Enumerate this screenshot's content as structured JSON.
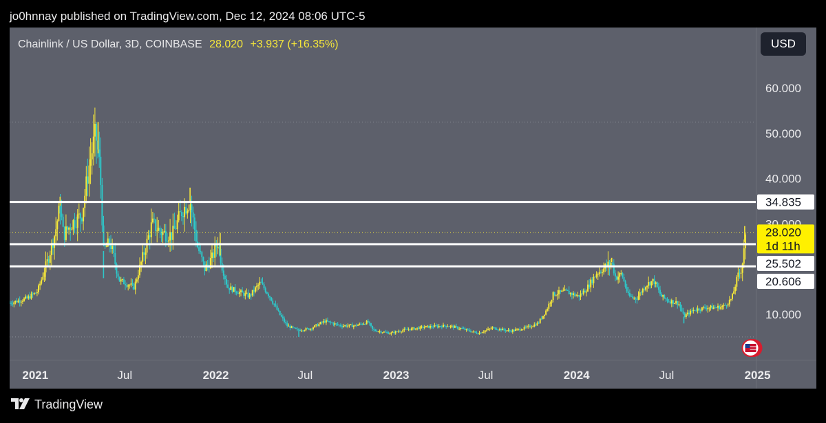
{
  "header": {
    "published": "jo0hnnay published on TradingView.com, Dec 12, 2024 08:06 UTC-5"
  },
  "legend": {
    "symbol": "Chainlink / US Dollar, 3D, COINBASE",
    "price": "28.020",
    "change": "+3.937 (+16.35%)"
  },
  "currency_button": "USD",
  "footer": {
    "brand": "TradingView"
  },
  "colors": {
    "background": "#5d606b",
    "up": "#f5e63a",
    "down": "#2ec7c9",
    "lines": "#ffffff",
    "price_label": "#fff000"
  },
  "chart_data": {
    "type": "candlestick",
    "title": "Chainlink / US Dollar, 3D, COINBASE",
    "x_tick_labels": [
      "2021",
      "Jul",
      "2022",
      "Jul",
      "2023",
      "Jul",
      "2024",
      "Jul",
      "2025"
    ],
    "y_tick_labels": [
      "10.000",
      "40.000",
      "50.000",
      "60.000"
    ],
    "ylim": [
      2,
      66
    ],
    "x_range": [
      "2020-11-10",
      "2025-04-30"
    ],
    "horizontal_levels": [
      34.835,
      25.502,
      20.606
    ],
    "current_price": {
      "value": 28.02,
      "label": "28.020",
      "countdown": "1d 11h"
    },
    "level_labels": [
      "34.835",
      "25.502",
      "20.606"
    ],
    "hidden_tick": "30.000",
    "close_path": [
      [
        "2020-11-10",
        12.5
      ],
      [
        "2020-12-15",
        13.5
      ],
      [
        "2021-01-05",
        15.0
      ],
      [
        "2021-01-25",
        21.5
      ],
      [
        "2021-02-10",
        28.0
      ],
      [
        "2021-02-20",
        34.0
      ],
      [
        "2021-02-27",
        27.5
      ],
      [
        "2021-03-15",
        30.0
      ],
      [
        "2021-04-05",
        32.0
      ],
      [
        "2021-04-20",
        43.0
      ],
      [
        "2021-05-03",
        50.0
      ],
      [
        "2021-05-12",
        42.0
      ],
      [
        "2021-05-19",
        24.0
      ],
      [
        "2021-06-01",
        26.0
      ],
      [
        "2021-06-20",
        17.5
      ],
      [
        "2021-07-20",
        16.0
      ],
      [
        "2021-08-10",
        24.0
      ],
      [
        "2021-08-25",
        30.0
      ],
      [
        "2021-09-15",
        28.0
      ],
      [
        "2021-10-05",
        27.5
      ],
      [
        "2021-10-25",
        33.0
      ],
      [
        "2021-11-10",
        35.0
      ],
      [
        "2021-11-25",
        25.0
      ],
      [
        "2021-12-10",
        20.0
      ],
      [
        "2021-12-25",
        22.5
      ],
      [
        "2022-01-05",
        26.0
      ],
      [
        "2022-01-15",
        20.0
      ],
      [
        "2022-01-25",
        16.0
      ],
      [
        "2022-02-15",
        15.0
      ],
      [
        "2022-03-10",
        14.0
      ],
      [
        "2022-04-01",
        17.0
      ],
      [
        "2022-04-20",
        14.0
      ],
      [
        "2022-05-10",
        10.0
      ],
      [
        "2022-05-25",
        7.5
      ],
      [
        "2022-06-15",
        6.5
      ],
      [
        "2022-07-10",
        6.8
      ],
      [
        "2022-08-10",
        8.5
      ],
      [
        "2022-09-10",
        7.5
      ],
      [
        "2022-10-10",
        7.5
      ],
      [
        "2022-11-05",
        8.3
      ],
      [
        "2022-11-15",
        6.5
      ],
      [
        "2022-12-20",
        5.8
      ],
      [
        "2023-01-15",
        6.5
      ],
      [
        "2023-03-01",
        7.2
      ],
      [
        "2023-04-15",
        7.5
      ],
      [
        "2023-05-15",
        6.8
      ],
      [
        "2023-06-15",
        5.8
      ],
      [
        "2023-07-15",
        7.0
      ],
      [
        "2023-08-20",
        6.3
      ],
      [
        "2023-09-20",
        7.0
      ],
      [
        "2023-10-15",
        8.0
      ],
      [
        "2023-11-01",
        11.0
      ],
      [
        "2023-11-15",
        14.5
      ],
      [
        "2023-12-10",
        15.0
      ],
      [
        "2024-01-05",
        14.0
      ],
      [
        "2024-01-20",
        15.5
      ],
      [
        "2024-02-10",
        19.0
      ],
      [
        "2024-03-01",
        20.5
      ],
      [
        "2024-03-12",
        21.5
      ],
      [
        "2024-03-20",
        18.0
      ],
      [
        "2024-04-01",
        19.0
      ],
      [
        "2024-04-15",
        14.0
      ],
      [
        "2024-05-01",
        13.5
      ],
      [
        "2024-05-20",
        16.5
      ],
      [
        "2024-06-05",
        17.5
      ],
      [
        "2024-06-20",
        14.0
      ],
      [
        "2024-07-05",
        13.0
      ],
      [
        "2024-07-25",
        12.5
      ],
      [
        "2024-08-05",
        9.5
      ],
      [
        "2024-08-25",
        11.0
      ],
      [
        "2024-09-20",
        11.5
      ],
      [
        "2024-10-10",
        11.5
      ],
      [
        "2024-10-25",
        11.8
      ],
      [
        "2024-11-10",
        13.5
      ],
      [
        "2024-11-22",
        18.5
      ],
      [
        "2024-11-30",
        20.0
      ],
      [
        "2024-12-05",
        25.5
      ],
      [
        "2024-12-10",
        28.0
      ]
    ],
    "spikes": [
      [
        "2021-05-08",
        52.5,
        "up"
      ],
      [
        "2021-05-19",
        18.0,
        "down"
      ],
      [
        "2021-11-10",
        38.0,
        "up"
      ],
      [
        "2021-07-18",
        15.5,
        "down"
      ],
      [
        "2022-01-10",
        28.0,
        "up"
      ],
      [
        "2024-03-12",
        22.5,
        "up"
      ],
      [
        "2024-08-05",
        8.0,
        "down"
      ],
      [
        "2024-12-06",
        29.5,
        "up"
      ],
      [
        "2021-02-20",
        36.0,
        "up"
      ],
      [
        "2022-06-18",
        5.0,
        "down"
      ]
    ]
  }
}
